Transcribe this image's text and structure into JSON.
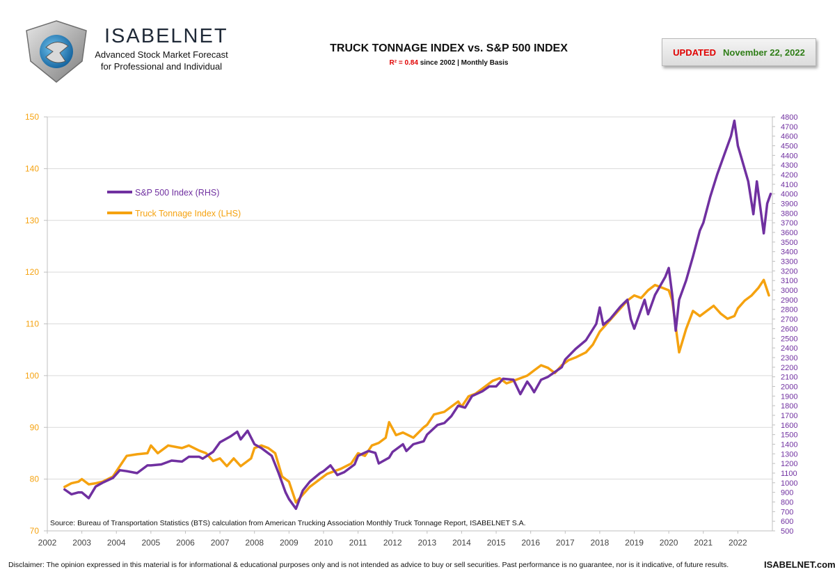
{
  "header": {
    "brand_name": "ISABELNET",
    "brand_tagline_1": "Advanced Stock Market Forecast",
    "brand_tagline_2": "for Professional and Individual",
    "updated_label": "UPDATED",
    "updated_date": "November 22, 2022"
  },
  "footer": {
    "disclaimer": "Disclaimer: The opinion expressed in this material is for informational & educational purposes only and is not intended as advice to buy or sell securities. Past performance is no guarantee, nor is it indicative, of future results.",
    "site": "ISABELNET.com"
  },
  "colors": {
    "sp500": "#7030A0",
    "truck": "#F5A20F",
    "left_axis": "#F5A20F",
    "right_axis": "#7030A0",
    "grid": "#d9d9d9"
  },
  "chart_data": {
    "type": "line",
    "title": "TRUCK TONNAGE INDEX vs. S&P 500 INDEX",
    "subtitle_r2_label": "R² = 0.84",
    "subtitle_rest": " since 2002 | Monthly Basis",
    "source": "Source: Bureau of Transportation Statistics (BTS) calculation from American Trucking Association Monthly Truck Tonnage Report, ISABELNET S.A.",
    "x_axis": {
      "min": 2002,
      "max": 2023,
      "ticks": [
        "2002",
        "2003",
        "2004",
        "2005",
        "2006",
        "2007",
        "2008",
        "2009",
        "2010",
        "2011",
        "2012",
        "2013",
        "2014",
        "2015",
        "2016",
        "2017",
        "2018",
        "2019",
        "2020",
        "2021",
        "2022"
      ]
    },
    "y_left": {
      "min": 70,
      "max": 150,
      "ticks": [
        "70",
        "80",
        "90",
        "100",
        "110",
        "120",
        "130",
        "140",
        "150"
      ]
    },
    "y_right": {
      "min": 500,
      "max": 4800,
      "ticks": [
        "500",
        "600",
        "700",
        "800",
        "900",
        "1000",
        "1100",
        "1200",
        "1300",
        "1400",
        "1500",
        "1600",
        "1700",
        "1800",
        "1900",
        "2000",
        "2100",
        "2200",
        "2300",
        "2400",
        "2500",
        "2600",
        "2700",
        "2800",
        "2900",
        "3000",
        "3100",
        "3200",
        "3300",
        "3400",
        "3500",
        "3600",
        "3700",
        "3800",
        "3900",
        "4000",
        "4100",
        "4200",
        "4300",
        "4400",
        "4500",
        "4600",
        "4700",
        "4800"
      ]
    },
    "grid": "horizontal",
    "legend_position": "upper-left",
    "series": [
      {
        "name": "S&P 500 Index (RHS)",
        "axis": "right",
        "points": [
          [
            2002.5,
            930
          ],
          [
            2002.7,
            880
          ],
          [
            2002.9,
            900
          ],
          [
            2003.0,
            900
          ],
          [
            2003.2,
            840
          ],
          [
            2003.4,
            960
          ],
          [
            2003.6,
            1000
          ],
          [
            2003.9,
            1050
          ],
          [
            2004.1,
            1130
          ],
          [
            2004.3,
            1120
          ],
          [
            2004.6,
            1100
          ],
          [
            2004.9,
            1180
          ],
          [
            2005.0,
            1180
          ],
          [
            2005.3,
            1190
          ],
          [
            2005.6,
            1230
          ],
          [
            2005.9,
            1220
          ],
          [
            2006.1,
            1270
          ],
          [
            2006.4,
            1270
          ],
          [
            2006.5,
            1250
          ],
          [
            2006.8,
            1320
          ],
          [
            2007.0,
            1420
          ],
          [
            2007.3,
            1480
          ],
          [
            2007.5,
            1530
          ],
          [
            2007.6,
            1450
          ],
          [
            2007.8,
            1540
          ],
          [
            2008.0,
            1400
          ],
          [
            2008.2,
            1360
          ],
          [
            2008.5,
            1280
          ],
          [
            2008.7,
            1100
          ],
          [
            2008.9,
            900
          ],
          [
            2009.0,
            830
          ],
          [
            2009.2,
            730
          ],
          [
            2009.4,
            920
          ],
          [
            2009.6,
            1010
          ],
          [
            2009.9,
            1100
          ],
          [
            2010.0,
            1120
          ],
          [
            2010.2,
            1180
          ],
          [
            2010.4,
            1080
          ],
          [
            2010.6,
            1110
          ],
          [
            2010.9,
            1190
          ],
          [
            2011.0,
            1280
          ],
          [
            2011.3,
            1330
          ],
          [
            2011.5,
            1310
          ],
          [
            2011.6,
            1200
          ],
          [
            2011.9,
            1260
          ],
          [
            2012.0,
            1320
          ],
          [
            2012.3,
            1400
          ],
          [
            2012.4,
            1330
          ],
          [
            2012.6,
            1400
          ],
          [
            2012.9,
            1430
          ],
          [
            2013.0,
            1500
          ],
          [
            2013.3,
            1600
          ],
          [
            2013.5,
            1620
          ],
          [
            2013.7,
            1690
          ],
          [
            2013.9,
            1800
          ],
          [
            2014.1,
            1780
          ],
          [
            2014.3,
            1900
          ],
          [
            2014.6,
            1950
          ],
          [
            2014.8,
            2000
          ],
          [
            2015.0,
            2000
          ],
          [
            2015.2,
            2080
          ],
          [
            2015.5,
            2070
          ],
          [
            2015.7,
            1920
          ],
          [
            2015.9,
            2050
          ],
          [
            2016.0,
            2000
          ],
          [
            2016.1,
            1940
          ],
          [
            2016.3,
            2070
          ],
          [
            2016.5,
            2100
          ],
          [
            2016.7,
            2150
          ],
          [
            2016.9,
            2200
          ],
          [
            2017.0,
            2280
          ],
          [
            2017.3,
            2390
          ],
          [
            2017.6,
            2480
          ],
          [
            2017.9,
            2650
          ],
          [
            2018.0,
            2820
          ],
          [
            2018.1,
            2640
          ],
          [
            2018.3,
            2700
          ],
          [
            2018.6,
            2830
          ],
          [
            2018.8,
            2900
          ],
          [
            2018.9,
            2700
          ],
          [
            2019.0,
            2600
          ],
          [
            2019.3,
            2900
          ],
          [
            2019.4,
            2750
          ],
          [
            2019.6,
            2950
          ],
          [
            2019.9,
            3140
          ],
          [
            2020.0,
            3230
          ],
          [
            2020.1,
            2950
          ],
          [
            2020.2,
            2580
          ],
          [
            2020.3,
            2900
          ],
          [
            2020.5,
            3100
          ],
          [
            2020.7,
            3350
          ],
          [
            2020.9,
            3620
          ],
          [
            2021.0,
            3700
          ],
          [
            2021.2,
            3970
          ],
          [
            2021.4,
            4200
          ],
          [
            2021.6,
            4400
          ],
          [
            2021.8,
            4600
          ],
          [
            2021.9,
            4760
          ],
          [
            2022.0,
            4500
          ],
          [
            2022.1,
            4380
          ],
          [
            2022.3,
            4130
          ],
          [
            2022.45,
            3790
          ],
          [
            2022.55,
            4130
          ],
          [
            2022.75,
            3590
          ],
          [
            2022.85,
            3900
          ],
          [
            2022.95,
            4000
          ]
        ]
      },
      {
        "name": "Truck Tonnage Index (LHS)",
        "axis": "left",
        "points": [
          [
            2002.5,
            78.5
          ],
          [
            2002.7,
            79.2
          ],
          [
            2002.9,
            79.5
          ],
          [
            2003.0,
            80.0
          ],
          [
            2003.2,
            79.0
          ],
          [
            2003.4,
            79.2
          ],
          [
            2003.6,
            79.5
          ],
          [
            2003.9,
            80.5
          ],
          [
            2004.1,
            82.5
          ],
          [
            2004.3,
            84.5
          ],
          [
            2004.6,
            84.8
          ],
          [
            2004.9,
            85.0
          ],
          [
            2005.0,
            86.5
          ],
          [
            2005.2,
            85.0
          ],
          [
            2005.5,
            86.5
          ],
          [
            2005.9,
            86.0
          ],
          [
            2006.1,
            86.5
          ],
          [
            2006.4,
            85.5
          ],
          [
            2006.6,
            85.0
          ],
          [
            2006.8,
            83.5
          ],
          [
            2007.0,
            84.0
          ],
          [
            2007.2,
            82.5
          ],
          [
            2007.4,
            84.0
          ],
          [
            2007.6,
            82.5
          ],
          [
            2007.9,
            84.0
          ],
          [
            2008.0,
            86.0
          ],
          [
            2008.2,
            86.5
          ],
          [
            2008.4,
            86.0
          ],
          [
            2008.6,
            85.0
          ],
          [
            2008.8,
            80.5
          ],
          [
            2009.0,
            79.5
          ],
          [
            2009.2,
            75.5
          ],
          [
            2009.4,
            77.0
          ],
          [
            2009.6,
            78.5
          ],
          [
            2009.9,
            80.0
          ],
          [
            2010.1,
            81.0
          ],
          [
            2010.3,
            81.5
          ],
          [
            2010.5,
            82.0
          ],
          [
            2010.8,
            83.0
          ],
          [
            2011.0,
            85.0
          ],
          [
            2011.2,
            84.5
          ],
          [
            2011.4,
            86.5
          ],
          [
            2011.6,
            87.0
          ],
          [
            2011.8,
            88.0
          ],
          [
            2011.9,
            91.0
          ],
          [
            2012.1,
            88.5
          ],
          [
            2012.3,
            89.0
          ],
          [
            2012.6,
            88.0
          ],
          [
            2012.9,
            90.0
          ],
          [
            2013.0,
            90.5
          ],
          [
            2013.2,
            92.5
          ],
          [
            2013.5,
            93.0
          ],
          [
            2013.7,
            94.0
          ],
          [
            2013.9,
            95.0
          ],
          [
            2014.0,
            94.0
          ],
          [
            2014.2,
            96.0
          ],
          [
            2014.4,
            96.5
          ],
          [
            2014.7,
            98.0
          ],
          [
            2014.9,
            99.0
          ],
          [
            2015.1,
            99.5
          ],
          [
            2015.3,
            98.5
          ],
          [
            2015.5,
            99.0
          ],
          [
            2015.7,
            99.5
          ],
          [
            2015.9,
            100.0
          ],
          [
            2016.1,
            101.0
          ],
          [
            2016.3,
            102.0
          ],
          [
            2016.5,
            101.5
          ],
          [
            2016.7,
            100.5
          ],
          [
            2016.9,
            102.0
          ],
          [
            2017.1,
            103.0
          ],
          [
            2017.3,
            103.5
          ],
          [
            2017.6,
            104.5
          ],
          [
            2017.8,
            106.0
          ],
          [
            2018.0,
            108.5
          ],
          [
            2018.2,
            110.0
          ],
          [
            2018.4,
            111.5
          ],
          [
            2018.6,
            113.0
          ],
          [
            2018.8,
            114.5
          ],
          [
            2019.0,
            115.5
          ],
          [
            2019.2,
            115.0
          ],
          [
            2019.4,
            116.5
          ],
          [
            2019.6,
            117.5
          ],
          [
            2019.8,
            117.0
          ],
          [
            2020.0,
            116.5
          ],
          [
            2020.1,
            114.5
          ],
          [
            2020.3,
            104.5
          ],
          [
            2020.5,
            109.0
          ],
          [
            2020.7,
            112.5
          ],
          [
            2020.9,
            111.5
          ],
          [
            2021.1,
            112.5
          ],
          [
            2021.3,
            113.5
          ],
          [
            2021.5,
            112.0
          ],
          [
            2021.7,
            111.0
          ],
          [
            2021.9,
            111.5
          ],
          [
            2022.0,
            113.0
          ],
          [
            2022.2,
            114.5
          ],
          [
            2022.4,
            115.5
          ],
          [
            2022.6,
            117.0
          ],
          [
            2022.75,
            118.5
          ],
          [
            2022.9,
            115.5
          ]
        ]
      }
    ]
  }
}
